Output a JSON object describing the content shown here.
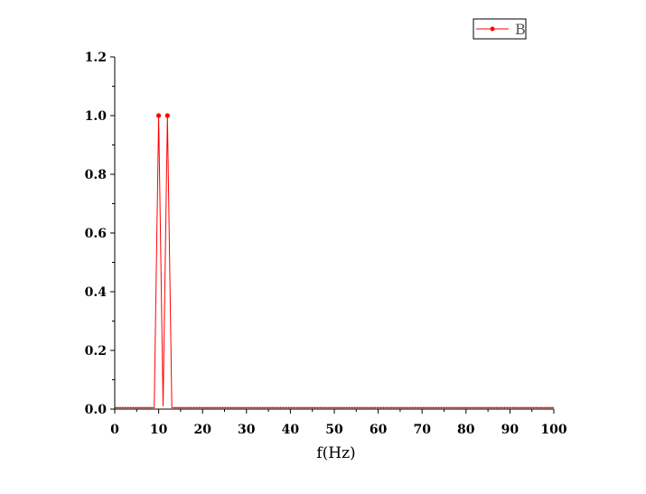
{
  "chart_data": {
    "type": "line",
    "title": "",
    "xlabel": "f(Hz)",
    "ylabel": "",
    "xlim": [
      0,
      100
    ],
    "ylim": [
      0,
      1.2
    ],
    "xticks": [
      0,
      10,
      20,
      30,
      40,
      50,
      60,
      70,
      80,
      90,
      100
    ],
    "yticks": [
      0.0,
      0.2,
      0.4,
      0.6,
      0.8,
      1.0,
      1.2
    ],
    "xtick_labels": [
      "0",
      "10",
      "20",
      "30",
      "40",
      "50",
      "60",
      "70",
      "80",
      "90",
      "100"
    ],
    "ytick_labels": [
      "0.0",
      "0.2",
      "0.4",
      "0.6",
      "0.8",
      "1.0",
      "1.2"
    ],
    "grid": false,
    "legend_position": "top-right",
    "colors": {
      "series": "#ff0000",
      "axis": "#000000"
    },
    "series": [
      {
        "name": "B",
        "x": [
          0,
          5,
          8,
          9,
          10,
          11,
          12,
          13,
          14,
          15,
          20,
          30,
          40,
          50,
          60,
          70,
          80,
          90,
          100
        ],
        "y": [
          0.005,
          0.005,
          0.005,
          0.005,
          1.0,
          0.01,
          1.0,
          0.005,
          0.005,
          0.005,
          0.005,
          0.005,
          0.005,
          0.005,
          0.005,
          0.005,
          0.005,
          0.005,
          0.005
        ],
        "markers_at": [
          10,
          12
        ]
      }
    ]
  }
}
